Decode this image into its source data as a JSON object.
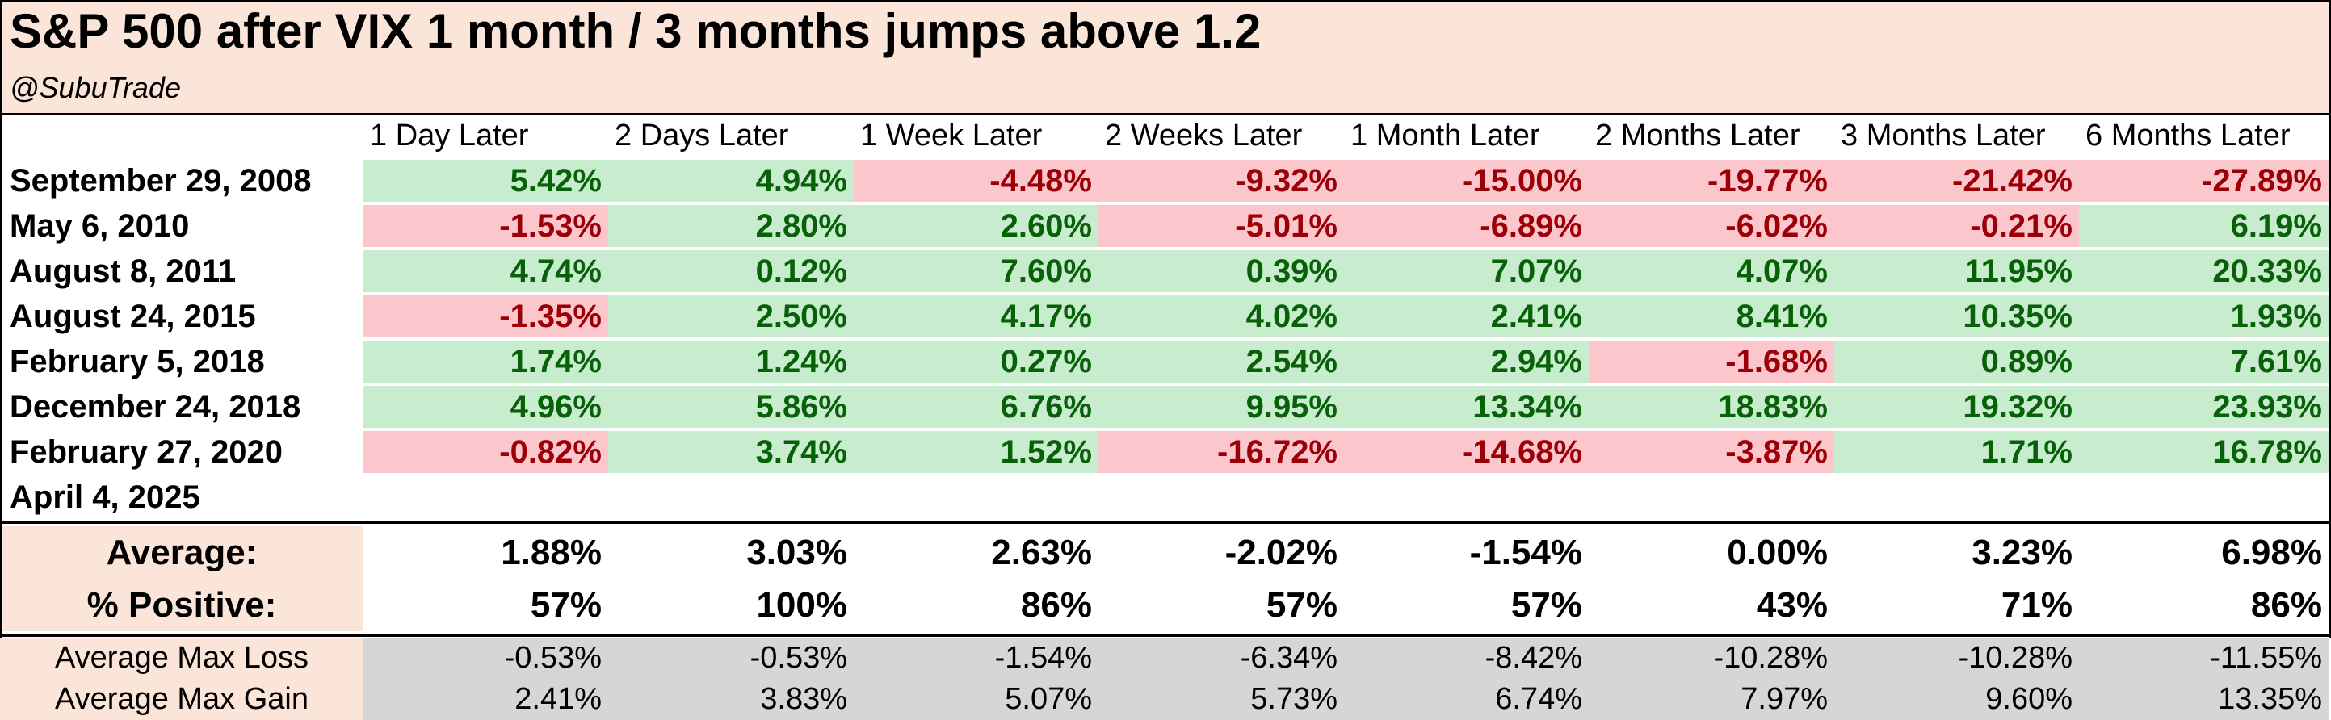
{
  "chart_data": {
    "type": "table",
    "title": "S&P 500 after VIX 1 month / 3 months jumps above 1.2",
    "subtitle": "@SubuTrade",
    "columns": [
      "1 Day Later",
      "2 Days Later",
      "1 Week Later",
      "2 Weeks Later",
      "1 Month Later",
      "2 Months Later",
      "3 Months Later",
      "6 Months Later"
    ],
    "rows": [
      {
        "date": "September 29, 2008",
        "values": [
          "5.42%",
          "4.94%",
          "-4.48%",
          "-9.32%",
          "-15.00%",
          "-19.77%",
          "-21.42%",
          "-27.89%"
        ]
      },
      {
        "date": "May 6, 2010",
        "values": [
          "-1.53%",
          "2.80%",
          "2.60%",
          "-5.01%",
          "-6.89%",
          "-6.02%",
          "-0.21%",
          "6.19%"
        ]
      },
      {
        "date": "August 8, 2011",
        "values": [
          "4.74%",
          "0.12%",
          "7.60%",
          "0.39%",
          "7.07%",
          "4.07%",
          "11.95%",
          "20.33%"
        ]
      },
      {
        "date": "August 24, 2015",
        "values": [
          "-1.35%",
          "2.50%",
          "4.17%",
          "4.02%",
          "2.41%",
          "8.41%",
          "10.35%",
          "1.93%"
        ]
      },
      {
        "date": "February 5, 2018",
        "values": [
          "1.74%",
          "1.24%",
          "0.27%",
          "2.54%",
          "2.94%",
          "-1.68%",
          "0.89%",
          "7.61%"
        ]
      },
      {
        "date": "December 24, 2018",
        "values": [
          "4.96%",
          "5.86%",
          "6.76%",
          "9.95%",
          "13.34%",
          "18.83%",
          "19.32%",
          "23.93%"
        ]
      },
      {
        "date": "February 27, 2020",
        "values": [
          "-0.82%",
          "3.74%",
          "1.52%",
          "-16.72%",
          "-14.68%",
          "-3.87%",
          "1.71%",
          "16.78%"
        ]
      },
      {
        "date": "April 4, 2025",
        "values": [
          "",
          "",
          "",
          "",
          "",
          "",
          "",
          ""
        ]
      }
    ],
    "summary": [
      {
        "label": "Average:",
        "values": [
          "1.88%",
          "3.03%",
          "2.63%",
          "-2.02%",
          "-1.54%",
          "0.00%",
          "3.23%",
          "6.98%"
        ]
      },
      {
        "label": "% Positive:",
        "values": [
          "57%",
          "100%",
          "86%",
          "57%",
          "57%",
          "43%",
          "71%",
          "86%"
        ]
      }
    ],
    "max_stats": [
      {
        "label": "Average Max Loss",
        "values": [
          "-0.53%",
          "-0.53%",
          "-1.54%",
          "-6.34%",
          "-8.42%",
          "-10.28%",
          "-10.28%",
          "-11.55%"
        ]
      },
      {
        "label": "Average Max Gain",
        "values": [
          "2.41%",
          "3.83%",
          "5.07%",
          "5.73%",
          "6.74%",
          "7.97%",
          "9.60%",
          "13.35%"
        ]
      }
    ],
    "colors": {
      "positive_fill": "#c7ecce",
      "positive_text": "#086108",
      "negative_fill": "#fbc7cd",
      "negative_text": "#9c0006",
      "label_fill": "#fbe5d8",
      "stats_fill": "#d6d6d6"
    }
  }
}
